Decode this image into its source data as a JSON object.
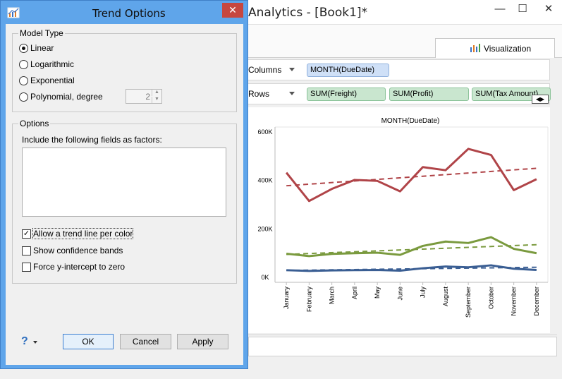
{
  "app": {
    "title": "Analytics - [Book1]*",
    "window_controls": {
      "minimize": "—",
      "maximize": "☐",
      "close": "✕"
    },
    "tab_label": "Visualization",
    "tab_icon": "bar-chart-icon",
    "shelves": {
      "columns": {
        "label": "Columns",
        "pills": [
          "MONTH(DueDate)"
        ]
      },
      "rows": {
        "label": "Rows",
        "pills": [
          "SUM(Freight)",
          "SUM(Profit)",
          "SUM(Tax Amount)"
        ]
      }
    }
  },
  "dialog": {
    "title": "Trend Options",
    "close_glyph": "✕",
    "model_type": {
      "legend": "Model Type",
      "options": [
        "Linear",
        "Logarithmic",
        "Exponential",
        "Polynomial, degree"
      ],
      "selected": "Linear",
      "degree": "2"
    },
    "options": {
      "legend": "Options",
      "factors_label": "Include the following fields as factors:",
      "checks": [
        {
          "label": "Allow a trend line per color",
          "checked": true
        },
        {
          "label": "Show confidence bands",
          "checked": false
        },
        {
          "label": "Force y-intercept to zero",
          "checked": false
        }
      ]
    },
    "help_glyph": "?",
    "buttons": {
      "ok": "OK",
      "cancel": "Cancel",
      "apply": "Apply"
    }
  },
  "chart_data": {
    "type": "line",
    "title": "MONTH(DueDate)",
    "categories": [
      "January",
      "February",
      "March",
      "April",
      "May",
      "June",
      "July",
      "August",
      "September",
      "October",
      "November",
      "December"
    ],
    "y_ticks": [
      "0K",
      "200K",
      "400K",
      "600K"
    ],
    "ylim": [
      -20000,
      620000
    ],
    "series": [
      {
        "color": "#b04448",
        "values": [
          432000,
          315000,
          365000,
          402000,
          398000,
          355000,
          455000,
          442000,
          530000,
          505000,
          360000,
          405000
        ],
        "trend": [
          378000,
          450000
        ]
      },
      {
        "color": "#7a9a3e",
        "values": [
          98000,
          88000,
          97000,
          100000,
          102000,
          93000,
          130000,
          148000,
          142000,
          166000,
          118000,
          100000
        ],
        "trend": [
          95000,
          135000
        ]
      },
      {
        "color": "#3a5e93",
        "values": [
          30000,
          27000,
          29000,
          30000,
          31000,
          28000,
          38000,
          45000,
          42000,
          50000,
          36000,
          31000
        ],
        "trend": [
          29000,
          42000
        ]
      }
    ],
    "grid": false,
    "legend": "none"
  }
}
